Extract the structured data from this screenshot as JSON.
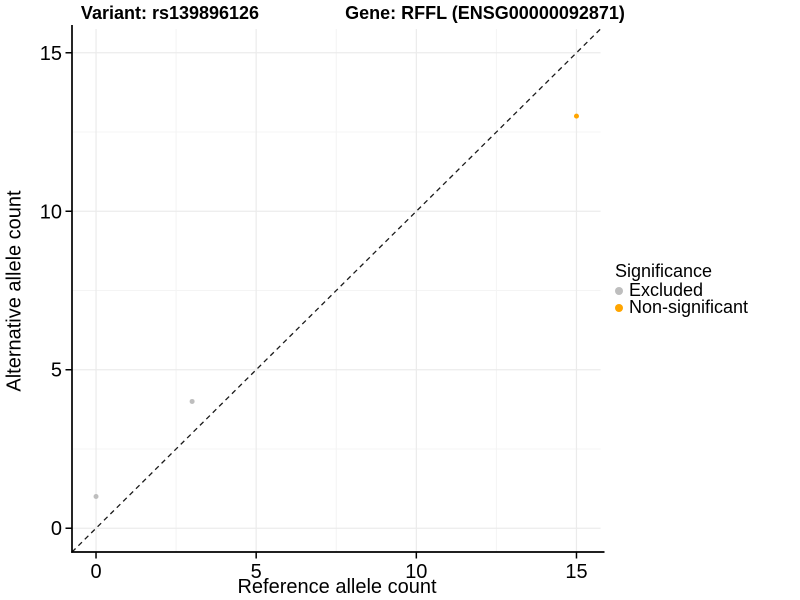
{
  "chart_data": {
    "type": "scatter",
    "title_left": "Variant: rs139896126",
    "title_right": "Gene: RFFL (ENSG00000092871)",
    "xlabel": "Reference allele count",
    "ylabel": "Alternative allele count",
    "xlim": [
      -0.75,
      15.75
    ],
    "ylim": [
      -0.75,
      15.75
    ],
    "x_ticks": [
      0,
      5,
      10,
      15
    ],
    "y_ticks": [
      0,
      5,
      10,
      15
    ],
    "x_minor_ticks": [
      2.5,
      7.5,
      12.5
    ],
    "y_minor_ticks": [
      2.5,
      7.5,
      12.5
    ],
    "grid": true,
    "legend_position": "right",
    "legend": {
      "title": "Significance"
    },
    "reference_line": {
      "equation": "y = x",
      "style": "dashed",
      "color": "#1A1A1A"
    },
    "series": [
      {
        "name": "Excluded",
        "color": "#BEBEBE",
        "points": [
          [
            0,
            1
          ],
          [
            3,
            4
          ]
        ]
      },
      {
        "name": "Non-significant",
        "color": "#FFA500",
        "points": [
          [
            15,
            13
          ]
        ]
      }
    ],
    "colors": {
      "background": "#FFFFFF",
      "major_grid": "#EBEBEB",
      "minor_grid": "#F4F4F4",
      "axis_line": "#000000",
      "tick_text": "#000000"
    }
  }
}
